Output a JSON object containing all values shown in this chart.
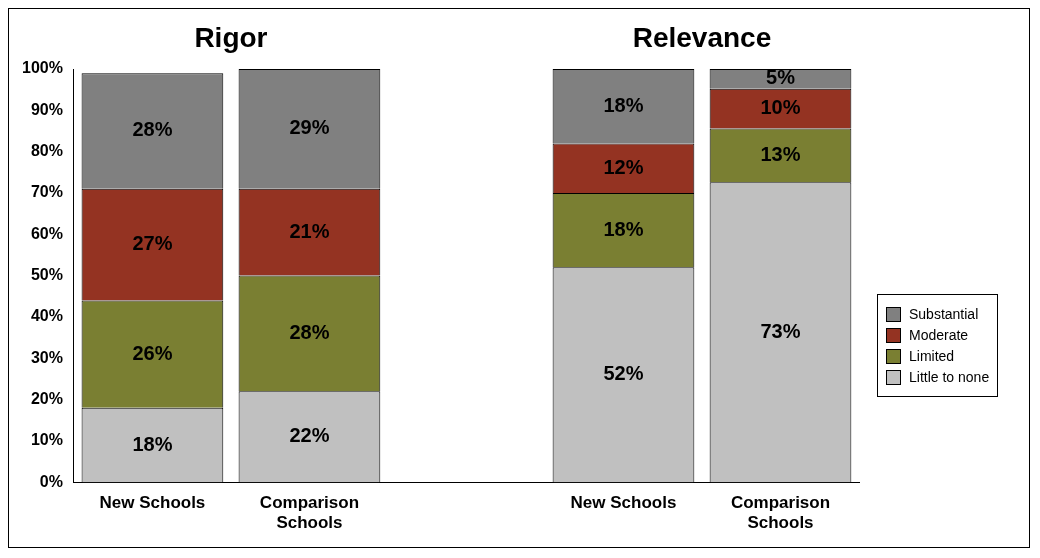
{
  "chart_data": {
    "type": "bar",
    "stacked": true,
    "categories": [
      "New Schools",
      "Comparison Schools",
      null,
      "New Schools",
      "Comparison Schools"
    ],
    "annotations": [
      "Rigor",
      "Relevance"
    ],
    "series": [
      {
        "name": "Little to none",
        "color": "#c0c0c0",
        "values": [
          18,
          22,
          null,
          52,
          72.6
        ],
        "value_labels": [
          "18%",
          "22%",
          null,
          "52%",
          "73%"
        ]
      },
      {
        "name": "Limited",
        "color": "#7a7f32",
        "values": [
          26,
          28,
          null,
          18,
          13
        ],
        "value_labels": [
          "26%",
          "28%",
          null,
          "18%",
          "13%"
        ]
      },
      {
        "name": "Moderate",
        "color": "#943322",
        "values": [
          27,
          21,
          null,
          12,
          9.6
        ],
        "value_labels": [
          "27%",
          "21%",
          null,
          "12%",
          "10%"
        ]
      },
      {
        "name": "Substantial",
        "color": "#808080",
        "values": [
          28,
          29,
          null,
          18,
          4.8
        ],
        "value_labels": [
          "28%",
          "29%",
          null,
          "18%",
          "5%"
        ]
      }
    ],
    "ylim": [
      0,
      100
    ],
    "yticks": [
      {
        "value": 0,
        "label": "0%"
      },
      {
        "value": 10,
        "label": "10%"
      },
      {
        "value": 20,
        "label": "20%"
      },
      {
        "value": 30,
        "label": "30%"
      },
      {
        "value": 40,
        "label": "40%"
      },
      {
        "value": 50,
        "label": "50%"
      },
      {
        "value": 60,
        "label": "60%"
      },
      {
        "value": 70,
        "label": "70%"
      },
      {
        "value": 80,
        "label": "80%"
      },
      {
        "value": 90,
        "label": "90%"
      },
      {
        "value": 100,
        "label": "100%"
      }
    ],
    "grid": false,
    "legend": "right"
  }
}
